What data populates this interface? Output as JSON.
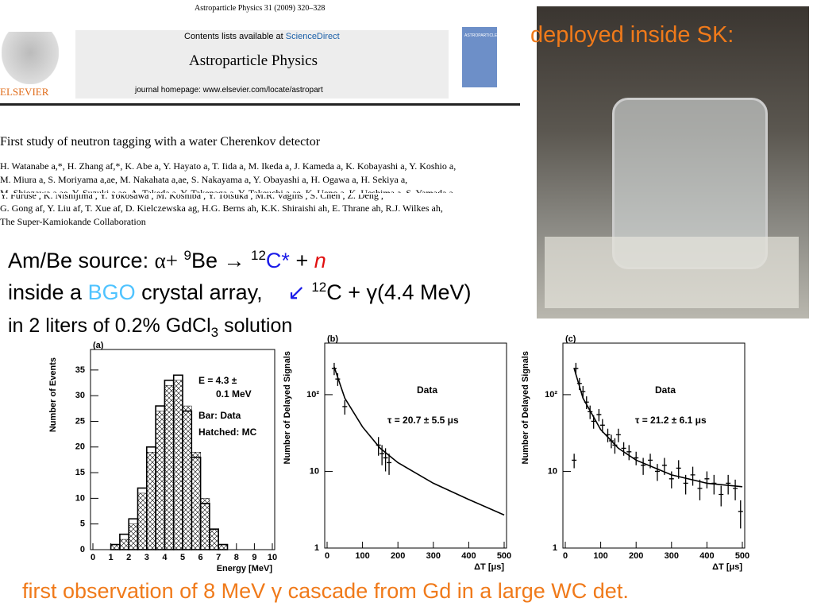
{
  "paper": {
    "journal_line": "Astroparticle Physics 31 (2009) 320–328",
    "contents": "Contents lists available at",
    "sciencedirect": "ScienceDirect",
    "journal": "Astroparticle Physics",
    "homepage": "journal homepage: www.elsevier.com/locate/astropart",
    "publisher": "ELSEVIER",
    "cover": "ASTROPARTICLE PHYSICS",
    "title": "First study of neutron tagging with a water Cherenkov detector",
    "authors": [
      "H. Watanabe a,*, H. Zhang af,*, K. Abe a, Y. Hayato a, T. Iida a, M. Ikeda a, J. Kameda a, K. Kobayashi a, Y. Koshio a,",
      "M. Miura a, S. Moriyama a,ae, M. Nakahata a,ae, S. Nakayama a, Y. Obayashi a, H. Ogawa a, H. Sekiya a,",
      "M. Shiozawa a,ae, Y. Suzuki a,ae, A. Takeda a, Y. Takenaga a, Y. Takeuchi a,ae, K. Ueno a, K. Ueshima a, S. Yamada a,",
      "Y. Furuse , K. Nishijima , Y. Yokosawa , M. Koshiba , Y. Totsuka , M.R. Vagins , S. Chen , Z. Deng ,",
      "G. Gong af, Y. Liu af, T. Xue af, D. Kielczewska ag, H.G. Berns ah, K.K. Shiraishi ah, E. Thrane ah, R.J. Wilkes ah,",
      "The Super-Kamiokande Collaboration"
    ]
  },
  "photo_caption": "deployed inside SK:",
  "line1": [
    "Am/Be source:",
    "α+",
    "9",
    "Be →",
    "12",
    "C*",
    "+",
    "n"
  ],
  "line2": [
    "inside a",
    "BGO",
    "crystal array,",
    "↙",
    "12",
    "C + γ(4.4 MeV)"
  ],
  "line3": [
    "in 2 liters of 0.2% GdCl",
    "3",
    "solution"
  ],
  "footer": "first observation of 8 MeV γ cascade from Gd in a large WC det.",
  "chart_data": [
    {
      "type": "histogram",
      "panel": "(a)",
      "xlabel": "Energy [MeV]",
      "ylabel": "Number of Events",
      "annotations": [
        "E = 4.3 ±",
        "0.1 MeV",
        "Bar: Data",
        "Hatched: MC"
      ],
      "bins": [
        1,
        1.5,
        2,
        2.5,
        3,
        3.5,
        4,
        4.5,
        5,
        5.5,
        6,
        6.5,
        7,
        7.5,
        8
      ],
      "values": [
        1,
        3,
        6,
        12,
        20,
        28,
        33,
        34,
        27,
        18,
        9,
        4,
        1,
        0
      ],
      "mc_values": [
        1,
        2,
        5,
        11,
        19,
        27,
        32,
        33,
        28,
        19,
        10,
        4,
        1,
        0
      ],
      "xlim": [
        0,
        10
      ],
      "xticks": [
        0,
        1,
        2,
        3,
        4,
        5,
        6,
        7,
        8,
        9,
        10
      ],
      "ylim": [
        0,
        39
      ],
      "yticks": [
        0,
        5,
        10,
        15,
        20,
        25,
        30,
        35
      ]
    },
    {
      "type": "scatter",
      "panel": "(b)",
      "xlabel": "ΔT [μs]",
      "ylabel": "Number of Delayed Signals",
      "annotations": [
        "Data",
        "τ = 20.7 ± 5.5 μs"
      ],
      "log_y": true,
      "x": [
        20,
        30,
        50,
        145,
        155,
        165,
        175
      ],
      "values": [
        220,
        160,
        70,
        22,
        17,
        15,
        13
      ],
      "errors": [
        40,
        30,
        15,
        6,
        5,
        5,
        4
      ],
      "fit": {
        "x": [
          20,
          50,
          100,
          150,
          200,
          300,
          400,
          500
        ],
        "values": [
          230,
          90,
          38,
          20,
          13,
          7,
          4.3,
          2.7
        ]
      },
      "xlim": [
        0,
        500
      ],
      "xticks": [
        0,
        100,
        200,
        300,
        400,
        500
      ],
      "ylim": [
        1,
        470
      ],
      "yticks": [
        1,
        10,
        {
          "value": 100,
          "label": "10²"
        }
      ]
    },
    {
      "type": "scatter",
      "panel": "(c)",
      "xlabel": "ΔT [μs]",
      "ylabel": "Number of Delayed Signals",
      "annotations": [
        "Data",
        "τ = 21.2 ± 6.1 μs"
      ],
      "log_y": true,
      "x": [
        25,
        30,
        40,
        50,
        60,
        70,
        80,
        95,
        105,
        120,
        130,
        140,
        150,
        165,
        180,
        200,
        220,
        240,
        260,
        280,
        300,
        320,
        340,
        360,
        380,
        400,
        420,
        440,
        460,
        480,
        495
      ],
      "values": [
        14,
        220,
        140,
        110,
        80,
        60,
        45,
        55,
        40,
        30,
        25,
        22,
        30,
        20,
        18,
        15,
        12,
        14,
        10,
        12,
        8,
        11,
        7,
        9,
        6,
        8,
        7,
        5,
        7,
        6,
        3
      ],
      "errors": [
        3,
        40,
        25,
        20,
        15,
        12,
        9,
        10,
        8,
        6,
        5,
        5,
        6,
        4,
        4,
        3,
        3,
        3,
        2.5,
        3,
        2,
        3,
        2,
        2.5,
        1.8,
        2,
        2,
        1.5,
        2,
        1.8,
        1.2
      ],
      "fit": {
        "x": [
          25,
          50,
          100,
          150,
          200,
          300,
          400,
          500
        ],
        "values": [
          220,
          90,
          35,
          20,
          14,
          9,
          7,
          6.3
        ]
      },
      "xlim": [
        0,
        500
      ],
      "xticks": [
        0,
        100,
        200,
        300,
        400,
        500
      ],
      "ylim": [
        1,
        470
      ],
      "yticks": [
        1,
        10,
        {
          "value": 100,
          "label": "10²"
        }
      ]
    }
  ]
}
